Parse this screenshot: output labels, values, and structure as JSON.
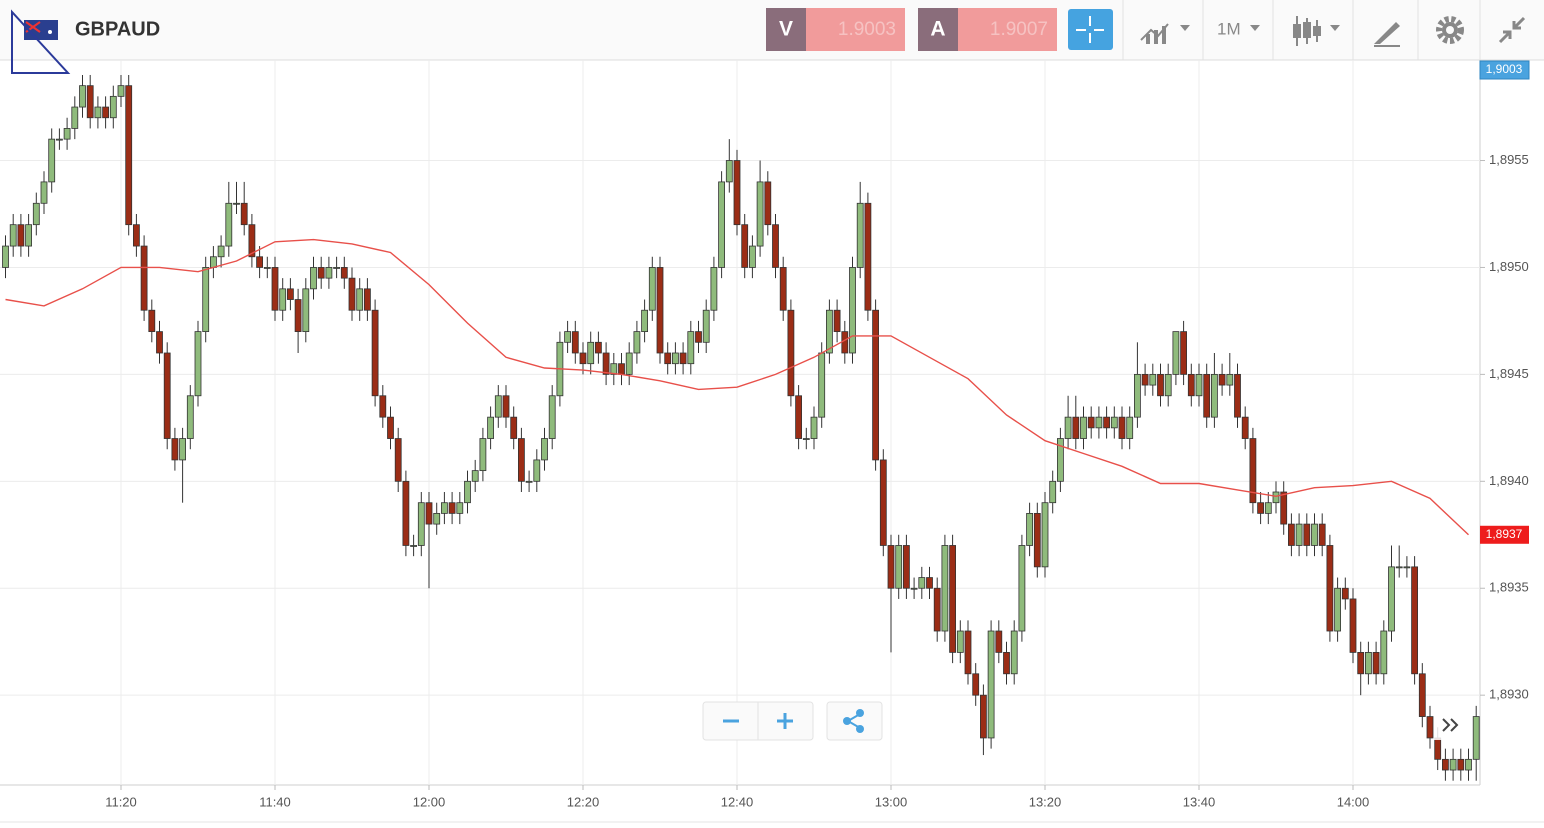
{
  "toolbar": {
    "symbol": "GBPAUD",
    "sell_label": "V",
    "sell_price": "1.9003",
    "buy_label": "A",
    "buy_price": "1.9007",
    "timeframe": "1M"
  },
  "chart_data": {
    "type": "candlestick",
    "x": [
      "11:05",
      "11:06",
      "11:07",
      "11:08",
      "11:09",
      "11:10",
      "11:11",
      "11:12",
      "11:13",
      "11:14",
      "11:15",
      "11:16",
      "11:17",
      "11:18",
      "11:19",
      "11:20",
      "11:21",
      "11:22",
      "11:23",
      "11:24",
      "11:25",
      "11:26",
      "11:27",
      "11:28",
      "11:29",
      "11:30",
      "11:31",
      "11:32",
      "11:33",
      "11:34",
      "11:35",
      "11:36",
      "11:37",
      "11:38",
      "11:39",
      "11:40",
      "11:41",
      "11:42",
      "11:43",
      "11:44",
      "11:45",
      "11:46",
      "11:47",
      "11:48",
      "11:49",
      "11:50",
      "11:51",
      "11:52",
      "11:53",
      "11:54",
      "11:55",
      "11:56",
      "11:57",
      "11:58",
      "11:59",
      "12:00",
      "12:01",
      "12:02",
      "12:03",
      "12:04",
      "12:05",
      "12:06",
      "12:07",
      "12:08",
      "12:09",
      "12:10",
      "12:11",
      "12:12",
      "12:13",
      "12:14",
      "12:15",
      "12:16",
      "12:17",
      "12:18",
      "12:19",
      "12:20",
      "12:21",
      "12:22",
      "12:23",
      "12:24",
      "12:25",
      "12:26",
      "12:27",
      "12:28",
      "12:29",
      "12:30",
      "12:31",
      "12:32",
      "12:33",
      "12:34",
      "12:35",
      "12:36",
      "12:37",
      "12:38",
      "12:39",
      "12:40",
      "12:41",
      "12:42",
      "12:43",
      "12:44",
      "12:45",
      "12:46",
      "12:47",
      "12:48",
      "12:49",
      "12:50",
      "12:51",
      "12:52",
      "12:53",
      "12:54",
      "12:55",
      "12:56",
      "12:57",
      "12:58",
      "12:59",
      "13:00",
      "13:01",
      "13:02",
      "13:03",
      "13:04",
      "13:05",
      "13:06",
      "13:07",
      "13:08",
      "13:09",
      "13:10",
      "13:11",
      "13:12",
      "13:13",
      "13:14",
      "13:15",
      "13:16",
      "13:17",
      "13:18",
      "13:19",
      "13:20",
      "13:21",
      "13:22",
      "13:23",
      "13:24",
      "13:25",
      "13:26",
      "13:27",
      "13:28",
      "13:29",
      "13:30",
      "13:31",
      "13:32",
      "13:33",
      "13:34",
      "13:35",
      "13:36",
      "13:37",
      "13:38",
      "13:39",
      "13:40",
      "13:41",
      "13:42",
      "13:43",
      "13:44",
      "13:45",
      "13:46",
      "13:47",
      "13:48",
      "13:49",
      "13:50",
      "13:51",
      "13:52",
      "13:53",
      "13:54",
      "13:55",
      "13:56",
      "13:57",
      "13:58",
      "13:59",
      "14:00",
      "14:01",
      "14:02",
      "14:03",
      "14:04",
      "14:05",
      "14:06",
      "14:07",
      "14:08",
      "14:09",
      "14:10",
      "14:11",
      "14:12",
      "14:13",
      "14:14",
      "14:15",
      "14:16"
    ],
    "open": [
      1.895,
      1.8951,
      1.8952,
      1.8951,
      1.8952,
      1.8953,
      1.8954,
      1.8956,
      1.8956,
      1.89565,
      1.89575,
      1.89585,
      1.8957,
      1.89575,
      1.8957,
      1.8958,
      1.89585,
      1.8952,
      1.8951,
      1.8948,
      1.8947,
      1.8946,
      1.8942,
      1.8941,
      1.8942,
      1.8944,
      1.8947,
      1.895,
      1.89505,
      1.8951,
      1.8953,
      1.8953,
      1.8952,
      1.89505,
      1.895,
      1.895,
      1.8948,
      1.8949,
      1.89485,
      1.8947,
      1.8949,
      1.895,
      1.89495,
      1.895,
      1.895,
      1.89495,
      1.8948,
      1.8949,
      1.8948,
      1.8944,
      1.8943,
      1.8942,
      1.894,
      1.8937,
      1.8937,
      1.8939,
      1.8938,
      1.89385,
      1.8939,
      1.89385,
      1.8939,
      1.894,
      1.89405,
      1.8942,
      1.8943,
      1.8944,
      1.8943,
      1.8942,
      1.894,
      1.894,
      1.8941,
      1.8942,
      1.8944,
      1.89465,
      1.8947,
      1.8946,
      1.89455,
      1.89465,
      1.8946,
      1.8945,
      1.89455,
      1.8945,
      1.8946,
      1.8947,
      1.8948,
      1.895,
      1.8946,
      1.89455,
      1.8946,
      1.89455,
      1.8947,
      1.89465,
      1.8948,
      1.895,
      1.8954,
      1.8955,
      1.8952,
      1.895,
      1.8951,
      1.8954,
      1.8952,
      1.895,
      1.8948,
      1.8944,
      1.8942,
      1.8942,
      1.8943,
      1.8946,
      1.8948,
      1.8947,
      1.8946,
      1.895,
      1.8953,
      1.8948,
      1.8941,
      1.8937,
      1.8935,
      1.8937,
      1.8935,
      1.8935,
      1.89355,
      1.8935,
      1.8933,
      1.8937,
      1.8932,
      1.8933,
      1.8931,
      1.893,
      1.8928,
      1.8933,
      1.8932,
      1.8931,
      1.8933,
      1.8937,
      1.89385,
      1.8936,
      1.8939,
      1.894,
      1.8942,
      1.8943,
      1.8942,
      1.8943,
      1.89425,
      1.8943,
      1.89425,
      1.8943,
      1.8942,
      1.8943,
      1.8945,
      1.89445,
      1.8945,
      1.8944,
      1.8945,
      1.8947,
      1.8945,
      1.8944,
      1.8945,
      1.8943,
      1.8945,
      1.89445,
      1.8945,
      1.8943,
      1.8942,
      1.8939,
      1.89385,
      1.8939,
      1.89395,
      1.8938,
      1.8937,
      1.8938,
      1.8937,
      1.8938,
      1.8937,
      1.8933,
      1.8935,
      1.89345,
      1.8932,
      1.8931,
      1.8932,
      1.8931,
      1.8933,
      1.8936,
      1.8936,
      1.8936,
      1.8931,
      1.8929,
      1.8928,
      1.8927,
      1.89265,
      1.8927,
      1.89265,
      1.8927
    ],
    "high": [
      1.89515,
      1.89525,
      1.89525,
      1.89525,
      1.89535,
      1.89545,
      1.89565,
      1.89565,
      1.8957,
      1.8958,
      1.8959,
      1.8959,
      1.8958,
      1.8958,
      1.89585,
      1.8959,
      1.8959,
      1.89525,
      1.89515,
      1.89485,
      1.89475,
      1.89465,
      1.89425,
      1.89425,
      1.89445,
      1.89475,
      1.89505,
      1.8951,
      1.89515,
      1.8954,
      1.8954,
      1.8954,
      1.89525,
      1.8951,
      1.89505,
      1.89505,
      1.89495,
      1.89495,
      1.8949,
      1.89495,
      1.89505,
      1.89505,
      1.89505,
      1.89505,
      1.89505,
      1.895,
      1.89495,
      1.89495,
      1.89485,
      1.89445,
      1.89435,
      1.89425,
      1.89405,
      1.89375,
      1.89395,
      1.89395,
      1.8939,
      1.89395,
      1.89395,
      1.89395,
      1.89405,
      1.8941,
      1.89425,
      1.89435,
      1.89445,
      1.89445,
      1.89435,
      1.89425,
      1.89405,
      1.89415,
      1.89425,
      1.89445,
      1.8947,
      1.89475,
      1.89475,
      1.89465,
      1.8947,
      1.8947,
      1.89465,
      1.8946,
      1.8946,
      1.89465,
      1.89475,
      1.89485,
      1.89505,
      1.89505,
      1.89465,
      1.89465,
      1.89465,
      1.89475,
      1.89475,
      1.89485,
      1.89505,
      1.89545,
      1.8956,
      1.89555,
      1.89525,
      1.89515,
      1.8955,
      1.89545,
      1.89525,
      1.89505,
      1.89485,
      1.89445,
      1.89425,
      1.89435,
      1.89465,
      1.89485,
      1.89485,
      1.89475,
      1.89505,
      1.8954,
      1.89535,
      1.89485,
      1.89415,
      1.89375,
      1.89375,
      1.89375,
      1.89355,
      1.8936,
      1.8936,
      1.89355,
      1.89375,
      1.89375,
      1.89335,
      1.89335,
      1.89315,
      1.89305,
      1.89335,
      1.89335,
      1.89325,
      1.89335,
      1.89375,
      1.8939,
      1.8939,
      1.89395,
      1.89405,
      1.89425,
      1.8944,
      1.8944,
      1.89435,
      1.89435,
      1.89435,
      1.89435,
      1.89435,
      1.89435,
      1.89435,
      1.89465,
      1.89455,
      1.89455,
      1.89455,
      1.89455,
      1.8947,
      1.89475,
      1.89455,
      1.89455,
      1.89455,
      1.8946,
      1.89455,
      1.8946,
      1.89455,
      1.89435,
      1.89425,
      1.89395,
      1.89395,
      1.894,
      1.894,
      1.89385,
      1.89385,
      1.89385,
      1.89385,
      1.89385,
      1.89375,
      1.89355,
      1.89355,
      1.8935,
      1.89325,
      1.89325,
      1.89325,
      1.89335,
      1.8937,
      1.8937,
      1.89365,
      1.89365,
      1.89315,
      1.89295,
      1.89285,
      1.89275,
      1.89275,
      1.89275,
      1.89275,
      1.89295
    ],
    "low": [
      1.89495,
      1.89505,
      1.89505,
      1.89505,
      1.89515,
      1.89525,
      1.89535,
      1.89555,
      1.89555,
      1.8956,
      1.8957,
      1.89565,
      1.89565,
      1.89565,
      1.89565,
      1.89575,
      1.89515,
      1.89505,
      1.89475,
      1.89465,
      1.89455,
      1.89415,
      1.89405,
      1.8939,
      1.89415,
      1.89435,
      1.89465,
      1.89495,
      1.895,
      1.89505,
      1.89525,
      1.89515,
      1.895,
      1.89495,
      1.89495,
      1.89475,
      1.89475,
      1.8948,
      1.8946,
      1.89465,
      1.89485,
      1.8949,
      1.8949,
      1.89495,
      1.8949,
      1.89475,
      1.89475,
      1.89475,
      1.89435,
      1.89425,
      1.89415,
      1.89395,
      1.89365,
      1.89365,
      1.89365,
      1.8935,
      1.89375,
      1.8938,
      1.8938,
      1.8938,
      1.89385,
      1.89395,
      1.894,
      1.89415,
      1.89425,
      1.89425,
      1.89415,
      1.89395,
      1.89395,
      1.89395,
      1.89405,
      1.89415,
      1.89435,
      1.8946,
      1.89455,
      1.8945,
      1.8945,
      1.89455,
      1.89445,
      1.89445,
      1.89445,
      1.89445,
      1.89455,
      1.89465,
      1.89475,
      1.89455,
      1.8945,
      1.8945,
      1.8945,
      1.8945,
      1.8946,
      1.8946,
      1.89475,
      1.89495,
      1.89535,
      1.89515,
      1.89495,
      1.89495,
      1.89505,
      1.89515,
      1.89495,
      1.89475,
      1.89435,
      1.89415,
      1.89415,
      1.89415,
      1.89425,
      1.89455,
      1.89465,
      1.89455,
      1.89455,
      1.89495,
      1.89475,
      1.89405,
      1.89365,
      1.8932,
      1.89345,
      1.89345,
      1.89345,
      1.89345,
      1.89345,
      1.89325,
      1.89325,
      1.89315,
      1.89315,
      1.89305,
      1.89295,
      1.89272,
      1.89275,
      1.89315,
      1.89305,
      1.89305,
      1.89325,
      1.89365,
      1.89355,
      1.89355,
      1.89385,
      1.89395,
      1.89415,
      1.89415,
      1.89415,
      1.8942,
      1.8942,
      1.8942,
      1.8942,
      1.89415,
      1.89415,
      1.89425,
      1.8944,
      1.8944,
      1.89435,
      1.89435,
      1.89445,
      1.89445,
      1.89435,
      1.89435,
      1.89425,
      1.89425,
      1.8944,
      1.8944,
      1.89425,
      1.89415,
      1.89385,
      1.8938,
      1.8938,
      1.89385,
      1.89375,
      1.89365,
      1.89365,
      1.89365,
      1.89365,
      1.89365,
      1.89325,
      1.89325,
      1.8934,
      1.89315,
      1.893,
      1.89305,
      1.89305,
      1.89305,
      1.89325,
      1.89355,
      1.89355,
      1.89305,
      1.89285,
      1.89275,
      1.89265,
      1.8926,
      1.8926,
      1.8926,
      1.8926,
      1.8926
    ],
    "close": [
      1.8951,
      1.8952,
      1.8951,
      1.8952,
      1.8953,
      1.8954,
      1.8956,
      1.8956,
      1.89565,
      1.89575,
      1.89585,
      1.8957,
      1.89575,
      1.8957,
      1.8958,
      1.89585,
      1.8952,
      1.8951,
      1.8948,
      1.8947,
      1.8946,
      1.8942,
      1.8941,
      1.8942,
      1.8944,
      1.8947,
      1.895,
      1.89505,
      1.8951,
      1.8953,
      1.8953,
      1.8952,
      1.89505,
      1.895,
      1.895,
      1.8948,
      1.8949,
      1.89485,
      1.8947,
      1.8949,
      1.895,
      1.89495,
      1.895,
      1.895,
      1.89495,
      1.8948,
      1.8949,
      1.8948,
      1.8944,
      1.8943,
      1.8942,
      1.894,
      1.8937,
      1.8937,
      1.8939,
      1.8938,
      1.89385,
      1.8939,
      1.89385,
      1.8939,
      1.894,
      1.89405,
      1.8942,
      1.8943,
      1.8944,
      1.8943,
      1.8942,
      1.894,
      1.894,
      1.8941,
      1.8942,
      1.8944,
      1.89465,
      1.8947,
      1.8946,
      1.89455,
      1.89465,
      1.8946,
      1.8945,
      1.89455,
      1.8945,
      1.8946,
      1.8947,
      1.8948,
      1.895,
      1.8946,
      1.89455,
      1.8946,
      1.89455,
      1.8947,
      1.89465,
      1.8948,
      1.895,
      1.8954,
      1.8955,
      1.8952,
      1.895,
      1.8951,
      1.8954,
      1.8952,
      1.895,
      1.8948,
      1.8944,
      1.8942,
      1.8942,
      1.8943,
      1.8946,
      1.8948,
      1.8947,
      1.8946,
      1.895,
      1.8953,
      1.8948,
      1.8941,
      1.8937,
      1.8935,
      1.8937,
      1.8935,
      1.8935,
      1.89355,
      1.8935,
      1.8933,
      1.8937,
      1.8932,
      1.8933,
      1.8931,
      1.893,
      1.8928,
      1.8933,
      1.8932,
      1.8931,
      1.8933,
      1.8937,
      1.89385,
      1.8936,
      1.8939,
      1.894,
      1.8942,
      1.8943,
      1.8942,
      1.8943,
      1.89425,
      1.8943,
      1.89425,
      1.8943,
      1.8942,
      1.8943,
      1.8945,
      1.89445,
      1.8945,
      1.8944,
      1.8945,
      1.8947,
      1.8945,
      1.8944,
      1.8945,
      1.8943,
      1.8945,
      1.89445,
      1.8945,
      1.8943,
      1.8942,
      1.8939,
      1.89385,
      1.8939,
      1.89395,
      1.8938,
      1.8937,
      1.8938,
      1.8937,
      1.8938,
      1.8937,
      1.8933,
      1.8935,
      1.89345,
      1.8932,
      1.8931,
      1.8932,
      1.8931,
      1.8933,
      1.8936,
      1.8936,
      1.8936,
      1.8931,
      1.8929,
      1.8928,
      1.8927,
      1.89265,
      1.8927,
      1.89265,
      1.8927,
      1.8929
    ],
    "up_color": "#8fbb7c",
    "down_color": "#9b2d16",
    "ylim": [
      1.89258,
      1.89597
    ],
    "yticks": [
      {
        "value": 1.893,
        "label": "1,8930"
      },
      {
        "value": 1.8935,
        "label": "1,8935"
      },
      {
        "value": 1.894,
        "label": "1,8940"
      },
      {
        "value": 1.8945,
        "label": "1,8945"
      },
      {
        "value": 1.895,
        "label": "1,8950"
      },
      {
        "value": 1.8955,
        "label": "1,8955"
      }
    ],
    "xticks": [
      "11:20",
      "11:40",
      "12:00",
      "12:20",
      "12:40",
      "13:00",
      "13:20",
      "13:40",
      "14:00"
    ],
    "grid": true,
    "bid_label": "1,9003",
    "moving_average": {
      "color": "#e8504a",
      "x": [
        "11:05",
        "11:10",
        "11:15",
        "11:20",
        "11:25",
        "11:30",
        "11:35",
        "11:40",
        "11:45",
        "11:50",
        "11:55",
        "12:00",
        "12:05",
        "12:10",
        "12:15",
        "12:20",
        "12:25",
        "12:30",
        "12:35",
        "12:40",
        "12:45",
        "12:50",
        "12:55",
        "13:00",
        "13:05",
        "13:10",
        "13:15",
        "13:20",
        "13:25",
        "13:30",
        "13:35",
        "13:40",
        "13:45",
        "13:50",
        "13:55",
        "14:00",
        "14:05",
        "14:10",
        "14:15"
      ],
      "values": [
        1.89485,
        1.89482,
        1.8949,
        1.895,
        1.895,
        1.89498,
        1.89503,
        1.89512,
        1.89513,
        1.89511,
        1.89507,
        1.89492,
        1.89474,
        1.89458,
        1.89453,
        1.89452,
        1.8945,
        1.89447,
        1.89443,
        1.89444,
        1.8945,
        1.89458,
        1.89468,
        1.89468,
        1.89458,
        1.89448,
        1.89431,
        1.89419,
        1.89413,
        1.89407,
        1.89399,
        1.89399,
        1.89396,
        1.89393,
        1.89397,
        1.89398,
        1.894,
        1.89392,
        1.89375
      ],
      "last_label": "1,8937"
    }
  }
}
